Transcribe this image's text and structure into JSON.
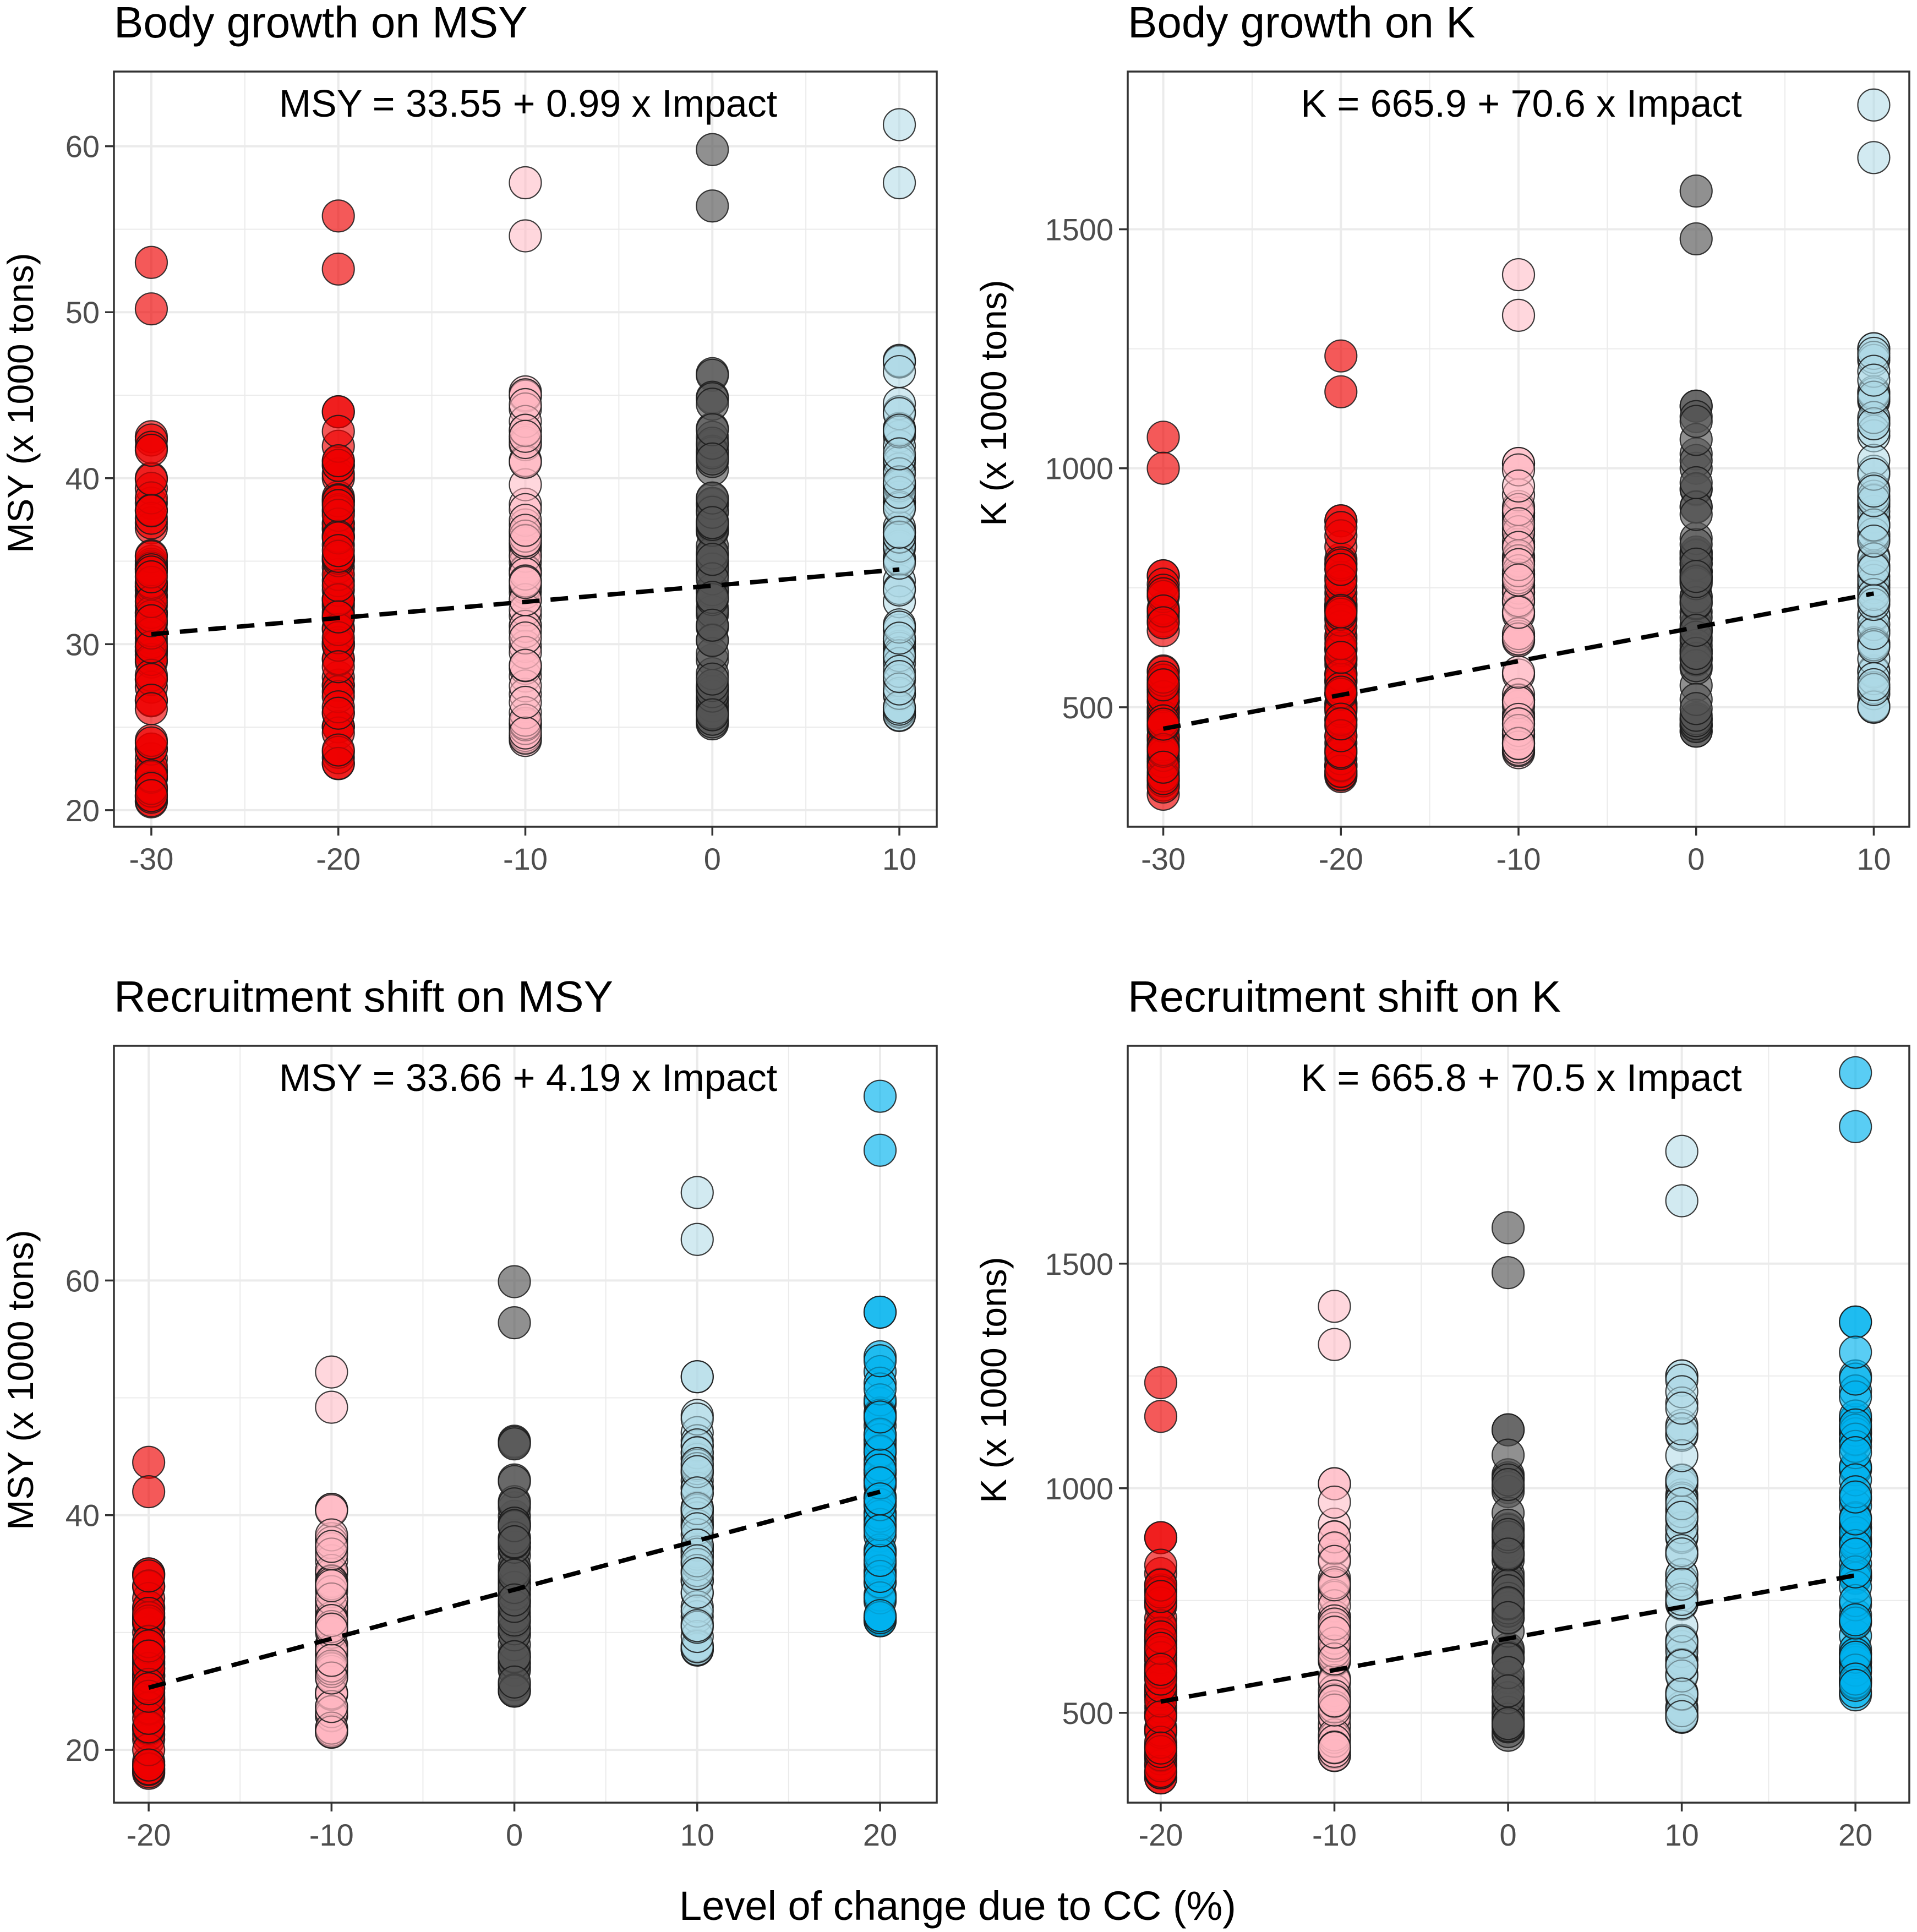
{
  "figure": {
    "xlabel": "Level of change due to CC (%)"
  },
  "colors": {
    "-30": "#ee0000",
    "-20": "#ee0000",
    "-10": "#ffb6c1",
    "0": "#555555",
    "10": "#add8e6",
    "20": "#00b2ee",
    "line": "#000000",
    "grid": "#ebebeb",
    "panel_border": "#333333"
  },
  "chart_data": [
    {
      "type": "scatter",
      "title": "Body growth on MSY",
      "equation": "MSY = 33.55 + 0.99 x Impact",
      "ylabel": "MSY (x 1000 tons)",
      "xlabel": "",
      "x_categories": [
        -30,
        -20,
        -10,
        0,
        10
      ],
      "xlim": [
        -32,
        12
      ],
      "ylim": [
        19,
        64.5
      ],
      "yticks": [
        20,
        30,
        40,
        50,
        60
      ],
      "fit": {
        "x": [
          -30,
          10
        ],
        "y": [
          30.6,
          34.5
        ]
      },
      "groups": [
        {
          "x": -30,
          "outliers": [
            53.0,
            50.2
          ],
          "min": 20.5,
          "max": 42.5,
          "extra": [
            42.3,
            40.0,
            38.5,
            37.0
          ]
        },
        {
          "x": -20,
          "outliers": [
            55.8,
            52.6
          ],
          "min": 22.8,
          "max": 44.0,
          "extra": [
            44.0,
            41.0,
            40.0
          ]
        },
        {
          "x": -10,
          "outliers": [
            57.8,
            54.6
          ],
          "min": 24.2,
          "max": 45.2,
          "extra": [
            45.0,
            42.5,
            41.0
          ]
        },
        {
          "x": 0,
          "outliers": [
            59.8,
            56.4
          ],
          "min": 25.2,
          "max": 46.3,
          "extra": [
            46.2,
            43.0,
            42.0
          ]
        },
        {
          "x": 10,
          "outliers": [
            61.3,
            57.8
          ],
          "min": 25.7,
          "max": 47.1,
          "extra": [
            47.0,
            44.0,
            43.0
          ]
        }
      ]
    },
    {
      "type": "scatter",
      "title": "Body growth on K",
      "equation": "K = 665.9 + 70.6 x Impact",
      "ylabel": "K (x 1000 tons)",
      "xlabel": "",
      "x_categories": [
        -30,
        -20,
        -10,
        0,
        10
      ],
      "xlim": [
        -32,
        12
      ],
      "ylim": [
        250,
        1830
      ],
      "yticks": [
        500,
        1000,
        1500
      ],
      "fit": {
        "x": [
          -30,
          10
        ],
        "y": [
          455,
          738
        ]
      },
      "groups": [
        {
          "x": -30,
          "outliers": [
            1065,
            1000
          ],
          "min": 318,
          "max": 775,
          "extra": [
            775,
            700,
            680
          ]
        },
        {
          "x": -20,
          "outliers": [
            1235,
            1160
          ],
          "min": 355,
          "max": 890,
          "extra": [
            890,
            810,
            790
          ]
        },
        {
          "x": -10,
          "outliers": [
            1405,
            1320
          ],
          "min": 405,
          "max": 1010,
          "extra": [
            1010,
            920,
            900
          ]
        },
        {
          "x": 0,
          "outliers": [
            1580,
            1480
          ],
          "min": 450,
          "max": 1130,
          "extra": [
            1130,
            1030,
            1000
          ]
        },
        {
          "x": 10,
          "outliers": [
            1760,
            1650
          ],
          "min": 500,
          "max": 1250,
          "extra": [
            1250,
            1140,
            1100
          ]
        }
      ]
    },
    {
      "type": "scatter",
      "title": "Recruitment shift on MSY",
      "equation": "MSY = 33.66 + 4.19 x Impact",
      "ylabel": "MSY (x 1000 tons)",
      "xlabel": "",
      "x_categories": [
        -20,
        -10,
        0,
        10,
        20
      ],
      "xlim": [
        -21.9,
        23.1
      ],
      "ylim": [
        15.5,
        80.0
      ],
      "yticks": [
        20,
        40,
        60
      ],
      "fit": {
        "x": [
          -20,
          20
        ],
        "y": [
          25.3,
          42.0
        ]
      },
      "groups": [
        {
          "x": -20,
          "outliers": [
            44.5,
            42.0
          ],
          "min": 18.0,
          "max": 35.0,
          "extra": [
            35.0,
            32.0
          ]
        },
        {
          "x": -10,
          "outliers": [
            52.2,
            49.2
          ],
          "min": 21.5,
          "max": 40.5,
          "extra": [
            40.5,
            38.0
          ]
        },
        {
          "x": 0,
          "outliers": [
            59.9,
            56.4
          ],
          "min": 25.0,
          "max": 46.3,
          "extra": [
            46.2,
            43.0
          ]
        },
        {
          "x": 10,
          "outliers": [
            67.5,
            63.5
          ],
          "min": 28.5,
          "max": 51.8,
          "extra": [
            51.8,
            48.5
          ]
        },
        {
          "x": 20,
          "outliers": [
            75.7,
            71.1
          ],
          "min": 31.0,
          "max": 57.3,
          "extra": [
            57.3,
            53.5
          ]
        }
      ]
    },
    {
      "type": "scatter",
      "title": "Recruitment shift on K",
      "equation": "K = 665.8 + 70.5 x Impact",
      "ylabel": "K (x 1000 tons)",
      "xlabel": "",
      "x_categories": [
        -20,
        -10,
        0,
        10,
        20
      ],
      "xlim": [
        -21.9,
        23.1
      ],
      "ylim": [
        300,
        1985
      ],
      "yticks": [
        500,
        1000,
        1500
      ],
      "fit": {
        "x": [
          -20,
          20
        ],
        "y": [
          525,
          806
        ]
      },
      "groups": [
        {
          "x": -20,
          "outliers": [
            1235,
            1160
          ],
          "min": 355,
          "max": 890,
          "extra": [
            890,
            810
          ]
        },
        {
          "x": -10,
          "outliers": [
            1405,
            1320
          ],
          "min": 405,
          "max": 1010,
          "extra": [
            1010,
            920
          ]
        },
        {
          "x": 0,
          "outliers": [
            1580,
            1480
          ],
          "min": 450,
          "max": 1130,
          "extra": [
            1130,
            1030
          ]
        },
        {
          "x": 10,
          "outliers": [
            1750,
            1640
          ],
          "min": 490,
          "max": 1250,
          "extra": [
            1250,
            1140
          ]
        },
        {
          "x": 20,
          "outliers": [
            1925,
            1805
          ],
          "min": 540,
          "max": 1370,
          "extra": [
            1370,
            1250
          ]
        }
      ]
    }
  ]
}
